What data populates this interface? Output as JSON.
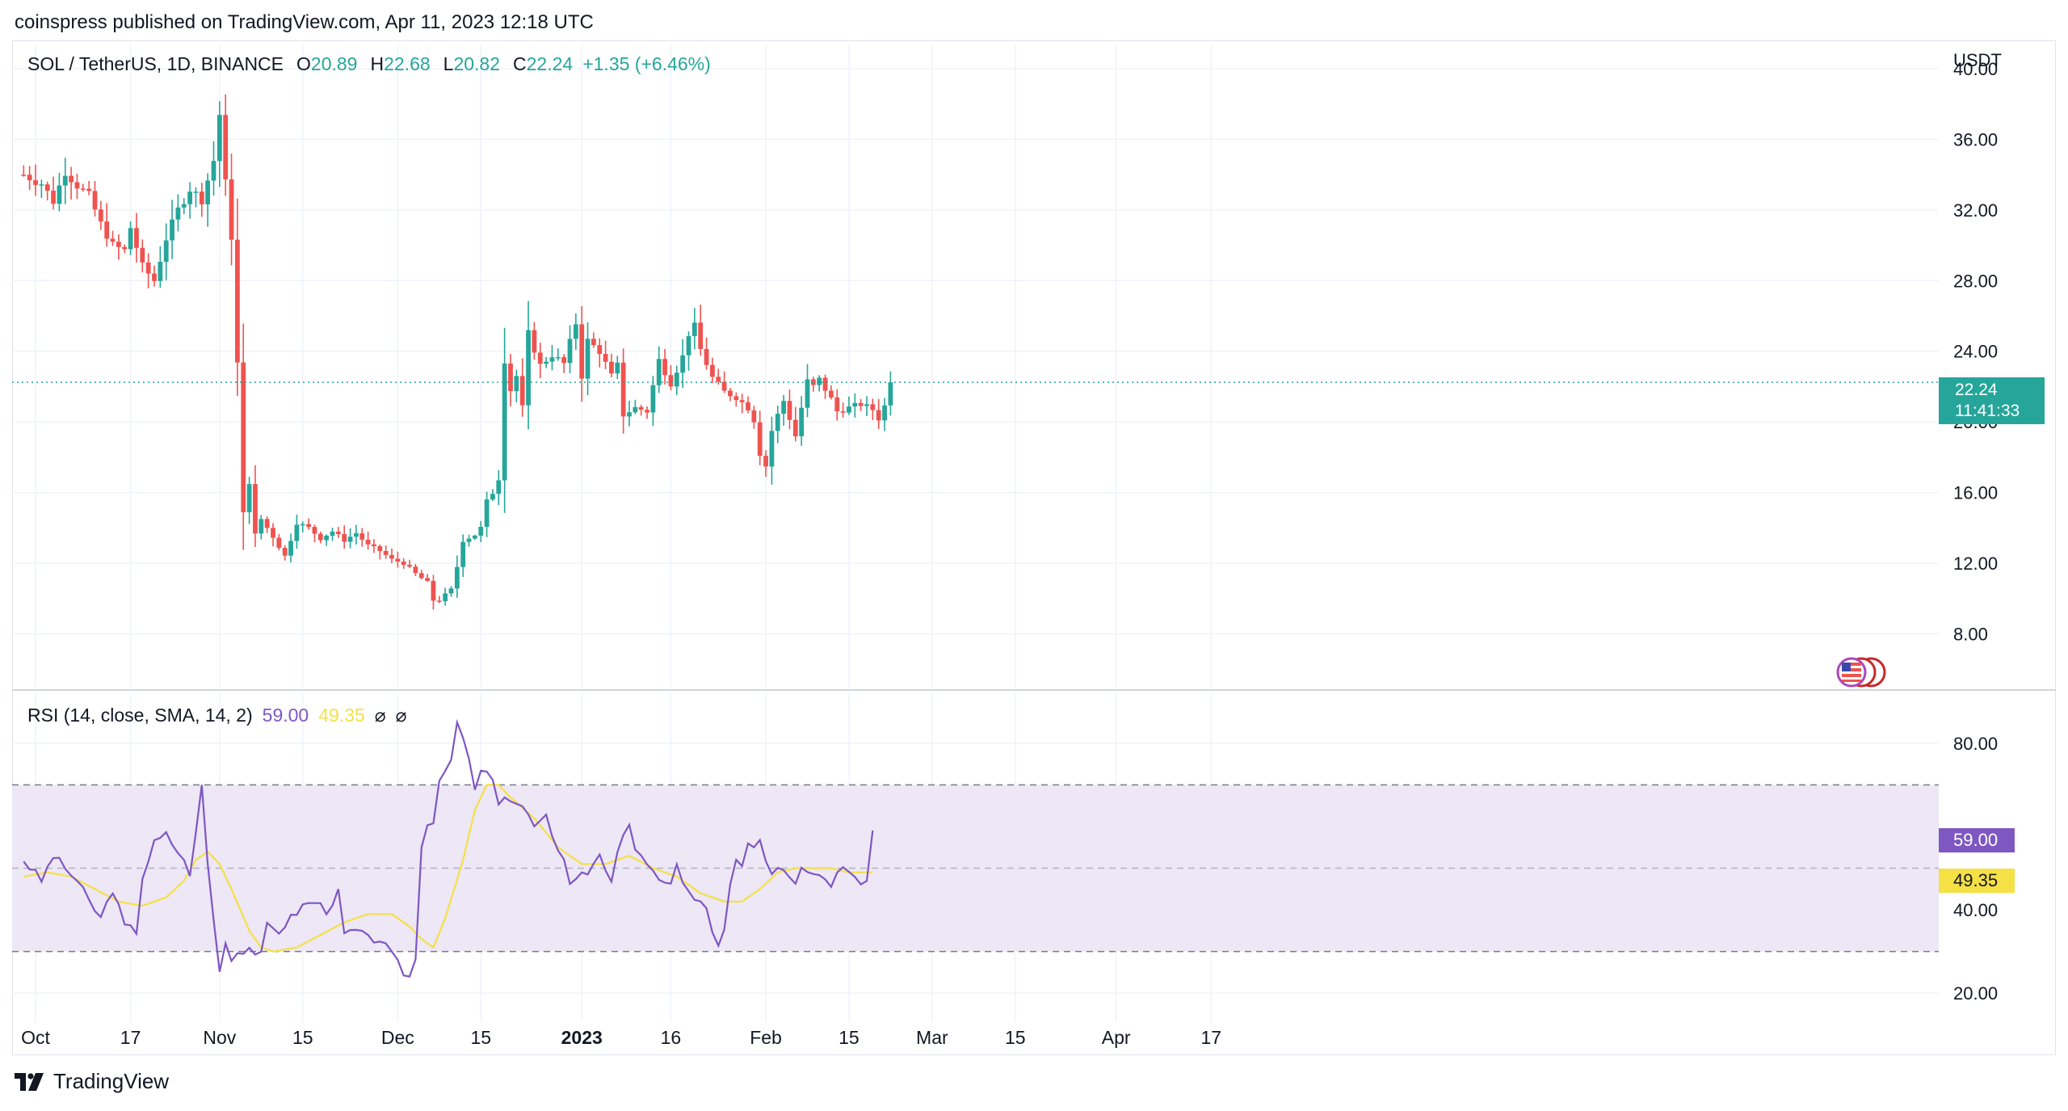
{
  "header": {
    "published": "coinspress published on TradingView.com, Apr 11, 2023 12:18 UTC"
  },
  "footer": {
    "brand": "TradingView"
  },
  "colors": {
    "up": "#26a69a",
    "down": "#ef5350",
    "rsi": "#7e57c2",
    "rsi_sma": "#f5e046",
    "band": "#ede7f6"
  },
  "legend": {
    "symbol": "SOL / TetherUS, 1D, BINANCE",
    "o_label": "O",
    "o": "20.89",
    "h_label": "H",
    "h": "22.68",
    "l_label": "L",
    "l": "20.82",
    "c_label": "C",
    "c": "22.24",
    "change": "+1.35 (+6.46%)"
  },
  "rsi_legend": {
    "label": "RSI (14, close, SMA, 14, 2)",
    "rsi": "59.00",
    "sma": "49.35",
    "icon1": "⌀",
    "icon2": "⌀"
  },
  "price_axis": {
    "unit": "USDT",
    "last_price": "22.24",
    "countdown": "11:41:33"
  },
  "rsi_axis": {
    "rsi_value": "59.00",
    "sma_value": "49.35"
  },
  "chart_data": [
    {
      "type": "candlestick",
      "title": "SOL / TetherUS, 1D, BINANCE",
      "ylabel": "USDT",
      "ylim": [
        5,
        40
      ],
      "y_ticks": [
        "40.00",
        "36.00",
        "32.00",
        "28.00",
        "24.00",
        "20.00",
        "16.00",
        "12.00",
        "8.00"
      ],
      "y_tick_values": [
        40,
        36,
        32,
        28,
        24,
        20,
        16,
        12,
        8
      ],
      "x_ticks": [
        {
          "label": "Oct",
          "day": 0
        },
        {
          "label": "17",
          "day": 16
        },
        {
          "label": "Nov",
          "day": 31
        },
        {
          "label": "15",
          "day": 45
        },
        {
          "label": "Dec",
          "day": 61
        },
        {
          "label": "15",
          "day": 75
        },
        {
          "label": "2023",
          "day": 92,
          "bold": true
        },
        {
          "label": "16",
          "day": 107
        },
        {
          "label": "Feb",
          "day": 123
        },
        {
          "label": "15",
          "day": 137
        },
        {
          "label": "Mar",
          "day": 151
        },
        {
          "label": "15",
          "day": 165
        },
        {
          "label": "Apr",
          "day": 182
        },
        {
          "label": "17",
          "day": 198
        }
      ],
      "first_date": "2022-10-01",
      "current_price": 22.24,
      "close_waypoints": [
        [
          -2,
          34.0
        ],
        [
          1,
          33.5
        ],
        [
          3,
          32.5
        ],
        [
          5,
          34.2
        ],
        [
          7,
          33.4
        ],
        [
          9,
          32.8
        ],
        [
          11,
          31.2
        ],
        [
          13,
          30.0
        ],
        [
          15,
          29.7
        ],
        [
          16,
          31.0
        ],
        [
          18,
          28.8
        ],
        [
          20,
          28.0
        ],
        [
          22,
          30.4
        ],
        [
          24,
          32.0
        ],
        [
          26,
          33.2
        ],
        [
          28,
          32.6
        ],
        [
          30,
          34.8
        ],
        [
          31,
          37.4
        ],
        [
          32,
          33.5
        ],
        [
          33,
          30.5
        ],
        [
          34,
          23.3
        ],
        [
          35,
          14.8
        ],
        [
          36,
          16.6
        ],
        [
          37,
          13.6
        ],
        [
          38,
          14.5
        ],
        [
          40,
          13.5
        ],
        [
          42,
          12.4
        ],
        [
          44,
          14.3
        ],
        [
          46,
          14.0
        ],
        [
          48,
          13.4
        ],
        [
          50,
          13.8
        ],
        [
          52,
          13.3
        ],
        [
          54,
          13.7
        ],
        [
          56,
          13.0
        ],
        [
          58,
          12.7
        ],
        [
          60,
          12.2
        ],
        [
          62,
          12.0
        ],
        [
          64,
          11.4
        ],
        [
          66,
          10.9
        ],
        [
          67,
          9.9
        ],
        [
          68,
          9.9
        ],
        [
          70,
          10.5
        ],
        [
          71,
          11.8
        ],
        [
          72,
          13.3
        ],
        [
          74,
          13.6
        ],
        [
          75,
          14.0
        ],
        [
          76,
          15.5
        ],
        [
          77,
          16.0
        ],
        [
          78,
          16.8
        ],
        [
          79,
          23.5
        ],
        [
          80,
          21.8
        ],
        [
          81,
          22.6
        ],
        [
          82,
          20.8
        ],
        [
          83,
          25.0
        ],
        [
          85,
          23.2
        ],
        [
          87,
          23.8
        ],
        [
          89,
          23.3
        ],
        [
          90,
          24.5
        ],
        [
          91,
          25.6
        ],
        [
          92,
          22.6
        ],
        [
          93,
          24.6
        ],
        [
          95,
          24.0
        ],
        [
          97,
          22.6
        ],
        [
          98,
          23.2
        ],
        [
          99,
          20.4
        ],
        [
          101,
          20.8
        ],
        [
          103,
          20.6
        ],
        [
          105,
          23.5
        ],
        [
          107,
          22.2
        ],
        [
          109,
          23.7
        ],
        [
          110,
          25.0
        ],
        [
          111,
          25.4
        ],
        [
          112,
          24.1
        ],
        [
          114,
          22.5
        ],
        [
          116,
          21.7
        ],
        [
          118,
          21.4
        ],
        [
          120,
          20.8
        ],
        [
          121,
          20.1
        ],
        [
          122,
          18.2
        ],
        [
          123,
          17.5
        ],
        [
          124,
          19.5
        ],
        [
          125,
          20.4
        ],
        [
          126,
          21.2
        ],
        [
          128,
          19.2
        ],
        [
          129,
          20.8
        ],
        [
          130,
          22.3
        ],
        [
          131,
          22.0
        ],
        [
          132,
          22.4
        ],
        [
          134,
          21.3
        ],
        [
          135,
          20.6
        ],
        [
          137,
          20.8
        ],
        [
          139,
          21.0
        ],
        [
          141,
          20.7
        ],
        [
          142,
          20.2
        ],
        [
          143,
          20.9
        ],
        [
          144,
          22.2
        ]
      ]
    },
    {
      "type": "line",
      "title": "RSI (14, close, SMA, 14, 2)",
      "ylim": [
        15,
        92
      ],
      "y_ticks": [
        "80.00",
        "40.00",
        "20.00"
      ],
      "y_tick_values": [
        80,
        40,
        20
      ],
      "band": [
        30,
        70
      ],
      "midline": 50,
      "series": [
        {
          "name": "RSI",
          "values_waypoints": [
            [
              -2,
              52
            ],
            [
              1,
              47
            ],
            [
              3,
              53
            ],
            [
              5,
              50
            ],
            [
              7,
              47
            ],
            [
              9,
              42
            ],
            [
              11,
              38
            ],
            [
              13,
              45
            ],
            [
              15,
              36
            ],
            [
              17,
              35
            ],
            [
              18,
              48
            ],
            [
              20,
              56
            ],
            [
              22,
              58
            ],
            [
              24,
              54
            ],
            [
              26,
              49
            ],
            [
              27,
              58
            ],
            [
              28,
              70
            ],
            [
              29,
              51
            ],
            [
              30,
              38
            ],
            [
              31,
              25
            ],
            [
              32,
              33
            ],
            [
              33,
              28
            ],
            [
              34,
              30
            ],
            [
              36,
              31
            ],
            [
              38,
              29
            ],
            [
              39,
              36
            ],
            [
              41,
              35
            ],
            [
              43,
              38
            ],
            [
              45,
              41
            ],
            [
              47,
              42
            ],
            [
              49,
              40
            ],
            [
              51,
              44
            ],
            [
              52,
              34
            ],
            [
              54,
              35
            ],
            [
              56,
              33
            ],
            [
              58,
              33
            ],
            [
              60,
              29
            ],
            [
              62,
              25
            ],
            [
              63,
              24
            ],
            [
              64,
              28
            ],
            [
              65,
              56
            ],
            [
              66,
              61
            ],
            [
              67,
              61
            ],
            [
              68,
              72
            ],
            [
              70,
              75
            ],
            [
              71,
              85
            ],
            [
              72,
              81
            ],
            [
              73,
              76
            ],
            [
              74,
              68
            ],
            [
              75,
              74
            ],
            [
              77,
              71
            ],
            [
              78,
              65
            ],
            [
              80,
              67
            ],
            [
              82,
              65
            ],
            [
              84,
              60
            ],
            [
              86,
              62
            ],
            [
              87,
              57
            ],
            [
              89,
              53
            ],
            [
              90,
              46
            ],
            [
              91,
              48
            ],
            [
              93,
              49
            ],
            [
              95,
              54
            ],
            [
              97,
              46
            ],
            [
              98,
              53
            ],
            [
              100,
              61
            ],
            [
              101,
              55
            ],
            [
              103,
              50
            ],
            [
              105,
              48
            ],
            [
              107,
              46
            ],
            [
              108,
              51
            ],
            [
              109,
              46
            ],
            [
              111,
              43
            ],
            [
              113,
              40
            ],
            [
              114,
              34
            ],
            [
              115,
              31
            ],
            [
              116,
              35
            ],
            [
              117,
              46
            ],
            [
              118,
              51
            ],
            [
              119,
              50
            ],
            [
              120,
              55
            ],
            [
              122,
              57
            ],
            [
              123,
              52
            ],
            [
              124,
              49
            ],
            [
              125,
              51
            ],
            [
              126,
              50
            ],
            [
              128,
              47
            ],
            [
              129,
              51
            ],
            [
              130,
              50
            ],
            [
              132,
              49
            ],
            [
              134,
              46
            ],
            [
              135,
              50
            ],
            [
              136,
              50
            ],
            [
              137,
              50
            ],
            [
              138,
              49
            ],
            [
              139,
              47
            ],
            [
              140,
              48
            ],
            [
              141,
              59
            ]
          ]
        },
        {
          "name": "SMA",
          "values_waypoints": [
            [
              -2,
              48
            ],
            [
              2,
              49
            ],
            [
              6,
              48
            ],
            [
              10,
              45
            ],
            [
              14,
              42
            ],
            [
              18,
              41
            ],
            [
              22,
              43
            ],
            [
              25,
              47
            ],
            [
              27,
              52
            ],
            [
              29,
              54
            ],
            [
              31,
              51
            ],
            [
              33,
              45
            ],
            [
              36,
              35
            ],
            [
              38,
              31
            ],
            [
              40,
              30
            ],
            [
              44,
              31
            ],
            [
              48,
              34
            ],
            [
              52,
              37
            ],
            [
              56,
              39
            ],
            [
              60,
              39
            ],
            [
              63,
              36
            ],
            [
              65,
              33
            ],
            [
              67,
              31
            ],
            [
              69,
              38
            ],
            [
              72,
              52
            ],
            [
              74,
              64
            ],
            [
              76,
              70
            ],
            [
              78,
              70
            ],
            [
              80,
              67
            ],
            [
              84,
              62
            ],
            [
              88,
              55
            ],
            [
              92,
              51
            ],
            [
              96,
              51
            ],
            [
              100,
              53
            ],
            [
              104,
              50
            ],
            [
              108,
              48
            ],
            [
              112,
              44
            ],
            [
              116,
              42
            ],
            [
              119,
              42
            ],
            [
              122,
              45
            ],
            [
              125,
              49
            ],
            [
              128,
              50
            ],
            [
              131,
              50
            ],
            [
              134,
              50
            ],
            [
              137,
              49
            ],
            [
              140,
              49
            ],
            [
              141,
              49
            ]
          ]
        }
      ]
    }
  ]
}
